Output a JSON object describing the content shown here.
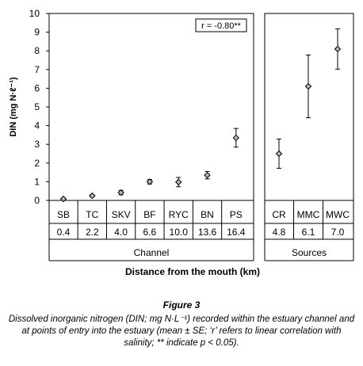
{
  "chart_data": {
    "type": "scatter",
    "ylabel": "DIN (mg N·ℓ⁻¹)",
    "ylim": [
      0,
      10
    ],
    "yticks": [
      0,
      1,
      2,
      3,
      4,
      5,
      6,
      7,
      8,
      9,
      10
    ],
    "xtitle": "Distance from the mouth (km)",
    "annotation": "r = -0.80**",
    "groups": [
      {
        "name": "Channel",
        "points": [
          {
            "site": "SB",
            "distance": "0.4",
            "mean": 0.08,
            "se": 0.04
          },
          {
            "site": "TC",
            "distance": "2.2",
            "mean": 0.25,
            "se": 0.06
          },
          {
            "site": "SKV",
            "distance": "4.0",
            "mean": 0.42,
            "se": 0.12
          },
          {
            "site": "BF",
            "distance": "6.6",
            "mean": 1.0,
            "se": 0.12
          },
          {
            "site": "RYC",
            "distance": "10.0",
            "mean": 0.98,
            "se": 0.25
          },
          {
            "site": "BN",
            "distance": "13.6",
            "mean": 1.35,
            "se": 0.2
          },
          {
            "site": "PS",
            "distance": "16.4",
            "mean": 3.35,
            "se": 0.5
          }
        ]
      },
      {
        "name": "Sources",
        "points": [
          {
            "site": "CR",
            "distance": "4.8",
            "mean": 2.5,
            "se": 0.78
          },
          {
            "site": "MMC",
            "distance": "6.1",
            "mean": 6.1,
            "se": 1.68
          },
          {
            "site": "MWC",
            "distance": "7.0",
            "mean": 8.1,
            "se": 1.08
          }
        ]
      }
    ]
  },
  "figure": {
    "title": "Figure 3",
    "caption": "Dissolved inorganic nitrogen (DIN; mg N·L⁻¹) recorded within the estuary channel and at points of entry into the estuary (mean ± SE; ‘r’ refers to linear correlation with salinity; ** indicate p < 0.05)."
  }
}
